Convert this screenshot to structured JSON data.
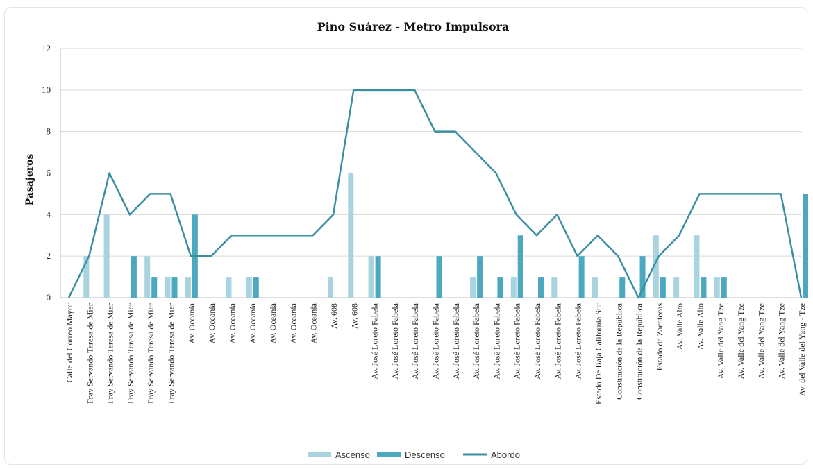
{
  "chart_data": {
    "type": "bar",
    "title": "Pino Suárez - Metro Impulsora",
    "xlabel": "",
    "ylabel": "Pasajeros",
    "ylim": [
      0,
      12
    ],
    "yticks": [
      0,
      2,
      4,
      6,
      8,
      10,
      12
    ],
    "grid": true,
    "legend_position": "bottom",
    "colors": {
      "ascenso": "#a8d3df",
      "descenso": "#4ba8bf",
      "abordo": "#3a8ea2",
      "grid": "#d9d9d9",
      "axis": "#bfbfbf"
    },
    "categories": [
      "Calle del Correo Mayor",
      "Fray Servando Teresa de Mier",
      "Fray Servando Teresa de Mier",
      "Fray Servando Teresa de Mier",
      "Fray Servando Teresa de Mier",
      "Fray Servando Teresa de Mier",
      "Av. Oceanía",
      "Av. Oceanía",
      "Av. Oceanía",
      "Av. Oceanía",
      "Av. Oceanía",
      "Av. Oceanía",
      "Av. Oceanía",
      "Av. 608",
      "Av. 608",
      "Av. José Loreto Fabela",
      "Av. José Loreto Fabela",
      "Av. José Loreto Fabela",
      "Av. José Loreto Fabela",
      "Av. José Loreto Fabela",
      "Av. José Loreto Fabela",
      "Av. José Loreto Fabela",
      "Av. José Loreto Fabela",
      "Av. José Loreto Fabela",
      "Av. José Loreto Fabela",
      "Av. José Loreto Fabela",
      "Estado De Baja California Sur",
      "Constitución de la República",
      "Constitución de la República",
      "Estado de Zacatecas",
      "Av. Valle Alto",
      "Av. Valle Alto",
      "Av. Valle del Yang Tze",
      "Av. Valle del Yang Tze",
      "Av. Valle del Yang Tze",
      "Av. Valle del Yang Tze",
      "Av. del Valle del Yang - Tze"
    ],
    "series": [
      {
        "name": "Ascenso",
        "kind": "bar",
        "values": [
          0,
          2,
          4,
          0,
          2,
          1,
          1,
          0,
          1,
          1,
          0,
          0,
          0,
          1,
          6,
          2,
          0,
          0,
          0,
          0,
          1,
          0,
          1,
          0,
          1,
          0,
          1,
          0,
          0,
          3,
          1,
          3,
          1,
          0,
          0,
          0,
          0
        ]
      },
      {
        "name": "Descenso",
        "kind": "bar",
        "values": [
          0,
          0,
          0,
          2,
          1,
          1,
          4,
          0,
          0,
          1,
          0,
          0,
          0,
          0,
          0,
          2,
          0,
          0,
          2,
          0,
          2,
          1,
          3,
          1,
          0,
          2,
          0,
          1,
          2,
          1,
          0,
          1,
          1,
          0,
          0,
          0,
          5
        ]
      },
      {
        "name": "Abordo",
        "kind": "line",
        "values": [
          0,
          2,
          6,
          4,
          5,
          5,
          2,
          2,
          3,
          3,
          3,
          3,
          3,
          4,
          10,
          10,
          10,
          10,
          8,
          8,
          7,
          6,
          4,
          3,
          4,
          2,
          3,
          2,
          0,
          2,
          3,
          5,
          5,
          5,
          5,
          5,
          0
        ]
      }
    ]
  }
}
